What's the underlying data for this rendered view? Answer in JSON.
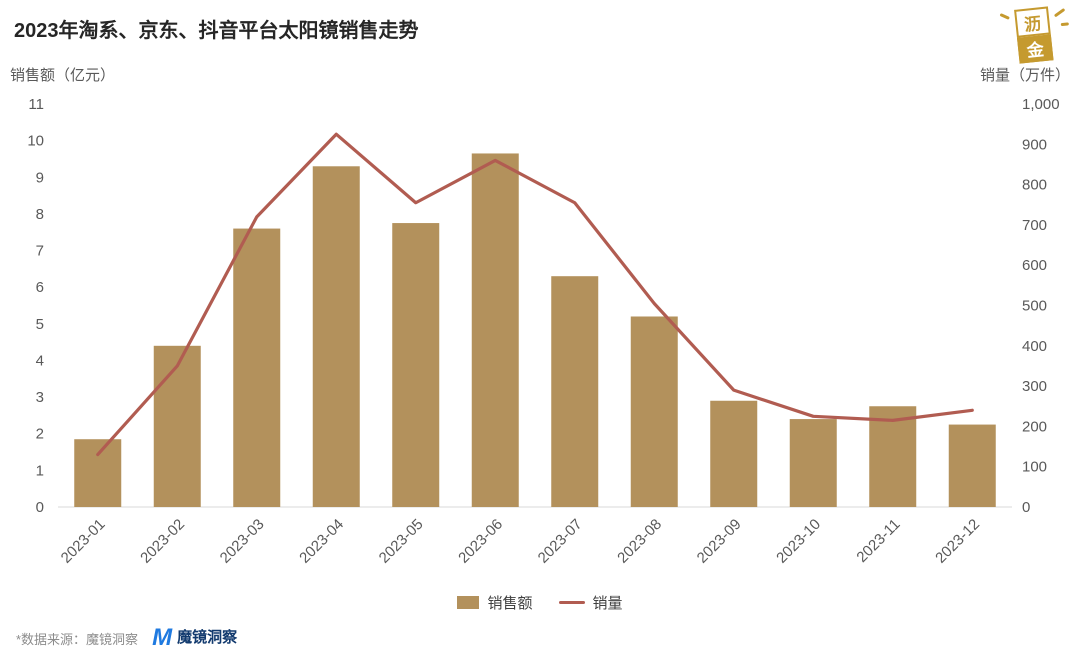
{
  "title": "2023年淘系、京东、抖音平台太阳镜销售走势",
  "logo": {
    "char1": "沥",
    "char2": "金"
  },
  "axes": {
    "left_title": "销售额（亿元）",
    "right_title": "销量（万件）"
  },
  "legend": [
    {
      "label": "销售额",
      "type": "bar"
    },
    {
      "label": "销量",
      "type": "line"
    }
  ],
  "footer": {
    "note": "*数据来源：魔镜洞察",
    "logo_text": "魔镜洞察",
    "logo_mark": "M"
  },
  "colors": {
    "bar": "#b3915c",
    "line": "#b15c51",
    "axis_text": "#595959",
    "baseline": "#d9d9d9"
  },
  "chart_data": {
    "type": "bar+line",
    "title": "2023年淘系、京东、抖音平台太阳镜销售走势",
    "categories": [
      "2023-01",
      "2023-02",
      "2023-03",
      "2023-04",
      "2023-05",
      "2023-06",
      "2023-07",
      "2023-08",
      "2023-09",
      "2023-10",
      "2023-11",
      "2023-12"
    ],
    "series": [
      {
        "name": "销售额",
        "type": "bar",
        "axis": "left",
        "values": [
          1.85,
          4.4,
          7.6,
          9.3,
          7.75,
          9.65,
          6.3,
          5.2,
          2.9,
          2.4,
          2.75,
          2.25
        ]
      },
      {
        "name": "销量",
        "type": "line",
        "axis": "right",
        "values": [
          130,
          350,
          720,
          925,
          755,
          860,
          755,
          505,
          290,
          225,
          215,
          240
        ]
      }
    ],
    "left_axis": {
      "label": "销售额（亿元）",
      "min": 0,
      "max": 11,
      "step": 1
    },
    "right_axis": {
      "label": "销量（万件）",
      "min": 0,
      "max": 1000,
      "step": 100
    },
    "grid": false,
    "legend_position": "bottom"
  }
}
